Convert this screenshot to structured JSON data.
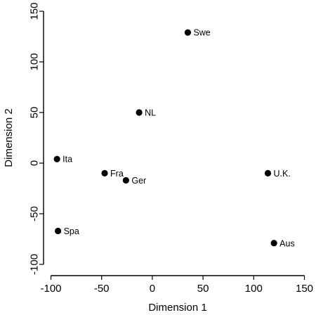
{
  "chart_data": {
    "type": "scatter",
    "title": "",
    "xlabel": "Dimension 1",
    "ylabel": "Dimension 2",
    "xlim": [
      -100,
      150
    ],
    "ylim": [
      -100,
      150
    ],
    "xticks": [
      "-100",
      "-50",
      "0",
      "50",
      "100",
      "150"
    ],
    "yticks": [
      "-100",
      "-50",
      "0",
      "50",
      "100",
      "150"
    ],
    "grid": false,
    "legend": "none",
    "point_color": "#000000",
    "points": [
      {
        "label": "Swe",
        "x": 35,
        "y": 129
      },
      {
        "label": "NL",
        "x": -13,
        "y": 50
      },
      {
        "label": "Ita",
        "x": -94,
        "y": 4
      },
      {
        "label": "Fra",
        "x": -47,
        "y": -10
      },
      {
        "label": "Ger",
        "x": -26,
        "y": -17
      },
      {
        "label": "U.K.",
        "x": 114,
        "y": -10
      },
      {
        "label": "Spa",
        "x": -93,
        "y": -67
      },
      {
        "label": "Aus",
        "x": 120,
        "y": -79
      }
    ]
  }
}
